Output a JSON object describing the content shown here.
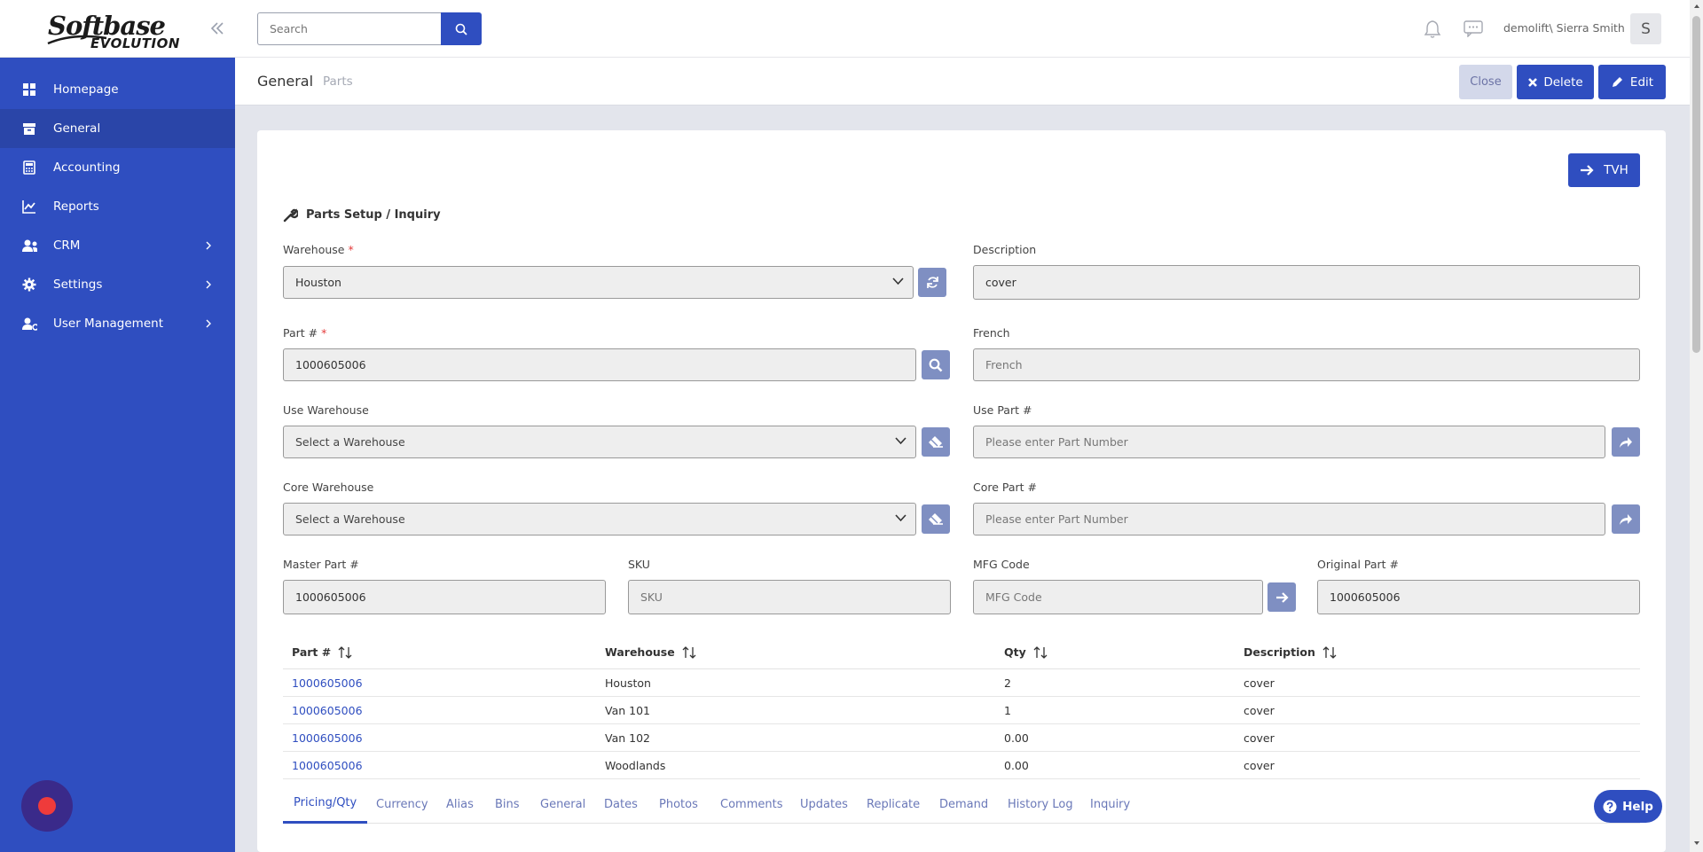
{
  "logo": {
    "line1": "Softbase",
    "line2": "EVOLUTION"
  },
  "sidebar": {
    "items": [
      {
        "label": "Homepage",
        "icon": "grid-icon"
      },
      {
        "label": "General",
        "icon": "archive-icon",
        "active": true
      },
      {
        "label": "Accounting",
        "icon": "calculator-icon"
      },
      {
        "label": "Reports",
        "icon": "chart-icon"
      },
      {
        "label": "CRM",
        "icon": "users-icon",
        "has_children": true
      },
      {
        "label": "Settings",
        "icon": "gear-icon",
        "has_children": true
      },
      {
        "label": "User Management",
        "icon": "user-gear-icon",
        "has_children": true
      }
    ]
  },
  "topbar": {
    "search_placeholder": "Search",
    "username": "demolift\\ Sierra Smith",
    "avatar_initial": "S"
  },
  "header": {
    "breadcrumb_main": "General",
    "breadcrumb_sub": "Parts",
    "close_label": "Close",
    "delete_label": "Delete",
    "edit_label": "Edit"
  },
  "card": {
    "tvh_label": "TVH",
    "section_title": "Parts Setup / Inquiry"
  },
  "form": {
    "warehouse": {
      "label": "Warehouse",
      "required": "*",
      "value": "Houston"
    },
    "description": {
      "label": "Description",
      "value": "cover"
    },
    "part_no": {
      "label": "Part #",
      "required": "*",
      "value": "1000605006"
    },
    "french": {
      "label": "French",
      "placeholder": "French"
    },
    "use_warehouse": {
      "label": "Use Warehouse",
      "placeholder": "Select a Warehouse"
    },
    "use_part": {
      "label": "Use Part #",
      "placeholder": "Please enter Part Number"
    },
    "core_warehouse": {
      "label": "Core Warehouse",
      "placeholder": "Select a Warehouse"
    },
    "core_part": {
      "label": "Core Part #",
      "placeholder": "Please enter Part Number"
    },
    "master_part": {
      "label": "Master Part #",
      "value": "1000605006"
    },
    "sku": {
      "label": "SKU",
      "placeholder": "SKU"
    },
    "mfg_code": {
      "label": "MFG Code",
      "placeholder": "MFG Code"
    },
    "original_part": {
      "label": "Original Part #",
      "value": "1000605006"
    }
  },
  "table": {
    "headers": [
      "Part #",
      "Warehouse",
      "Qty",
      "Description"
    ],
    "rows": [
      {
        "part": "1000605006",
        "warehouse": "Houston",
        "qty": "2",
        "description": "cover"
      },
      {
        "part": "1000605006",
        "warehouse": "Van 101",
        "qty": "1",
        "description": "cover"
      },
      {
        "part": "1000605006",
        "warehouse": "Van 102",
        "qty": "0.00",
        "description": "cover"
      },
      {
        "part": "1000605006",
        "warehouse": "Woodlands",
        "qty": "0.00",
        "description": "cover"
      }
    ]
  },
  "tabs": [
    "Pricing/Qty",
    "Currency",
    "Alias",
    "Bins",
    "General",
    "Dates",
    "Photos",
    "Comments",
    "Updates",
    "Replicate",
    "Demand",
    "History Log",
    "Inquiry"
  ],
  "help_label": "Help",
  "colors": {
    "primary": "#2f4ec0",
    "sidebar": "#2f4ec0",
    "required": "#e43b3b",
    "record": "#ef3b3b"
  }
}
